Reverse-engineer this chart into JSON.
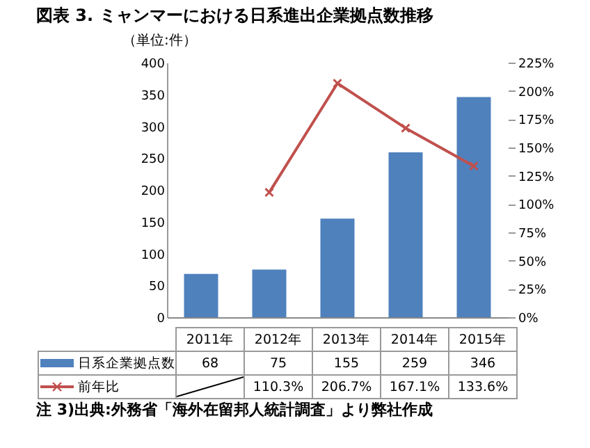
{
  "chart_data": {
    "type": "bar",
    "title": "図表 3. ミャンマーにおける日系進出企業拠点数推移",
    "annotations": [
      "（単位:件）",
      "注 3)出典:外務省「海外在留邦人統計調査」より弊社作成"
    ],
    "categories": [
      "2011年",
      "2012年",
      "2013年",
      "2014年",
      "2015年"
    ],
    "series": [
      {
        "name": "日系企業拠点数",
        "type": "bar",
        "color": "#4f81bd",
        "values": [
          68,
          75,
          155,
          259,
          346
        ],
        "value_labels": [
          "68",
          "75",
          "155",
          "259",
          "346"
        ]
      },
      {
        "name": "前年比",
        "type": "line",
        "axis": "y2",
        "color": "#c0504d",
        "marker": "cross",
        "values": [
          null,
          110.3,
          206.7,
          167.1,
          133.6
        ],
        "value_labels": [
          null,
          "110.3%",
          "206.7%",
          "167.1%",
          "133.6%"
        ]
      }
    ],
    "ylim": [
      0,
      400
    ],
    "yticks": [
      0,
      50,
      100,
      150,
      200,
      250,
      300,
      350,
      400
    ],
    "y2lim": [
      0,
      225
    ],
    "y2ticks": [
      {
        "value": 0,
        "label": "0%"
      },
      {
        "value": 25,
        "label": "25%"
      },
      {
        "value": 50,
        "label": "50%"
      },
      {
        "value": 75,
        "label": "75%"
      },
      {
        "value": 100,
        "label": "100%"
      },
      {
        "value": 125,
        "label": "125%"
      },
      {
        "value": 150,
        "label": "150%"
      },
      {
        "value": 175,
        "label": "175%"
      },
      {
        "value": 200,
        "label": "200%"
      },
      {
        "value": 225,
        "label": "225%"
      }
    ],
    "grid": false,
    "legend": "bottom"
  }
}
